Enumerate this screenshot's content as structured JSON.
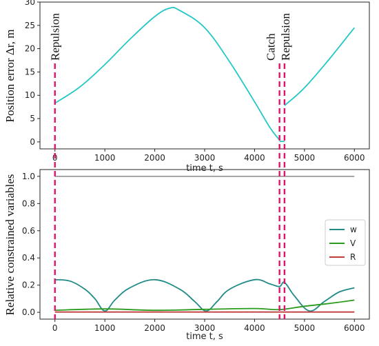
{
  "chart_data": [
    {
      "type": "line",
      "ylabel": "Position error Δr, m",
      "xlabel": "time t, s",
      "xticks": [
        0,
        1000,
        2000,
        3000,
        4000,
        5000,
        6000
      ],
      "yticks": [
        0,
        5,
        10,
        15,
        20,
        25,
        30
      ],
      "xlim": [
        -300,
        6300
      ],
      "ylim": [
        -1.5,
        30
      ],
      "color": "#22c6c6",
      "segments": [
        {
          "x": [
            0,
            500,
            1000,
            1500,
            2000,
            2300,
            2500,
            3000,
            3500,
            4000,
            4300,
            4500
          ],
          "y": [
            8.3,
            11.8,
            16.6,
            22.0,
            26.9,
            28.7,
            28.2,
            24.5,
            17.2,
            8.6,
            3.2,
            0.4
          ]
        },
        {
          "x": [
            4500,
            4600
          ],
          "y": [
            0.1,
            0.1
          ]
        },
        {
          "x": [
            4600,
            5000,
            5500,
            6000
          ],
          "y": [
            7.8,
            11.6,
            17.8,
            24.5
          ]
        }
      ],
      "annotations": [
        "Repulsion",
        "Catch",
        "Repulsion"
      ],
      "event_times": [
        0,
        4500,
        4600
      ]
    },
    {
      "type": "line",
      "ylabel": "Relative constrained variables",
      "xlabel": "time t, s",
      "xticks": [
        0,
        1000,
        2000,
        3000,
        4000,
        5000,
        6000
      ],
      "yticks": [
        0.0,
        0.2,
        0.4,
        0.6,
        0.8,
        1.0
      ],
      "xlim": [
        -300,
        6300
      ],
      "ylim": [
        -0.05,
        1.05
      ],
      "legend_position": "center-right",
      "reference_line": {
        "y": 1.0,
        "color": "#888888"
      },
      "series": [
        {
          "name": "w",
          "color": "#1f8a86",
          "x": [
            0,
            300,
            600,
            800,
            1000,
            1200,
            1500,
            2000,
            2500,
            2800,
            3030,
            3250,
            3500,
            4000,
            4300,
            4500,
            4600,
            4800,
            5100,
            5400,
            5700,
            6000
          ],
          "y": [
            0.24,
            0.23,
            0.17,
            0.1,
            0.01,
            0.09,
            0.18,
            0.24,
            0.17,
            0.08,
            0.01,
            0.08,
            0.17,
            0.24,
            0.21,
            0.19,
            0.22,
            0.12,
            0.01,
            0.08,
            0.15,
            0.18
          ]
        },
        {
          "name": "V",
          "color": "#2a9a1c",
          "x": [
            0,
            1000,
            2000,
            3000,
            4000,
            4500,
            5000,
            5500,
            6000
          ],
          "y": [
            0.015,
            0.025,
            0.015,
            0.022,
            0.028,
            0.02,
            0.045,
            0.065,
            0.09
          ]
        },
        {
          "name": "R",
          "color": "#c03a3a",
          "x": [
            0,
            6000
          ],
          "y": [
            0.002,
            0.002
          ]
        }
      ]
    }
  ],
  "marker_color": "#e0126e"
}
